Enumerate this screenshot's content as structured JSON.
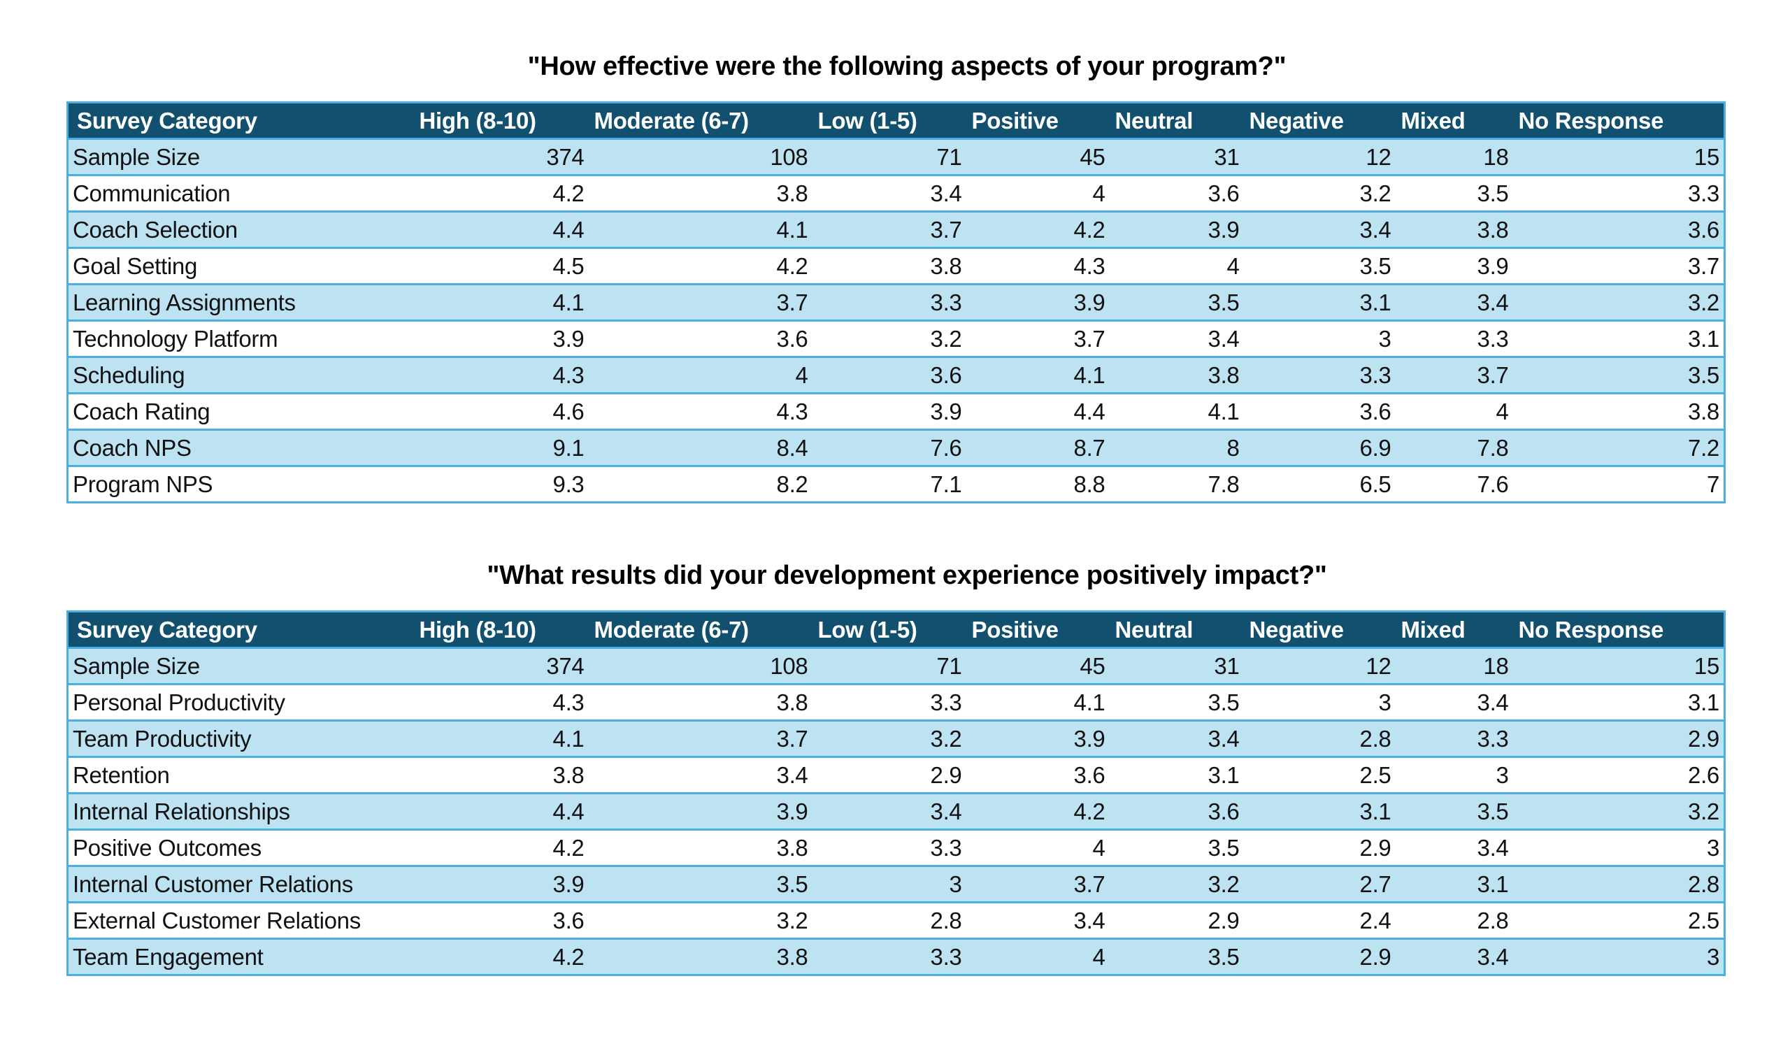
{
  "headers": [
    "Survey Category",
    "High (8-10)",
    "Moderate (6-7)",
    "Low (1-5)",
    "Positive",
    "Neutral",
    "Negative",
    "Mixed",
    "No Response"
  ],
  "tables": [
    {
      "title": "\"How effective were the following aspects of your program?\"",
      "rows": [
        [
          "Sample Size",
          "374",
          "108",
          "71",
          "45",
          "31",
          "12",
          "18",
          "15"
        ],
        [
          "Communication",
          "4.2",
          "3.8",
          "3.4",
          "4",
          "3.6",
          "3.2",
          "3.5",
          "3.3"
        ],
        [
          "Coach Selection",
          "4.4",
          "4.1",
          "3.7",
          "4.2",
          "3.9",
          "3.4",
          "3.8",
          "3.6"
        ],
        [
          "Goal Setting",
          "4.5",
          "4.2",
          "3.8",
          "4.3",
          "4",
          "3.5",
          "3.9",
          "3.7"
        ],
        [
          "Learning Assignments",
          "4.1",
          "3.7",
          "3.3",
          "3.9",
          "3.5",
          "3.1",
          "3.4",
          "3.2"
        ],
        [
          "Technology Platform",
          "3.9",
          "3.6",
          "3.2",
          "3.7",
          "3.4",
          "3",
          "3.3",
          "3.1"
        ],
        [
          "Scheduling",
          "4.3",
          "4",
          "3.6",
          "4.1",
          "3.8",
          "3.3",
          "3.7",
          "3.5"
        ],
        [
          "Coach Rating",
          "4.6",
          "4.3",
          "3.9",
          "4.4",
          "4.1",
          "3.6",
          "4",
          "3.8"
        ],
        [
          "Coach NPS",
          "9.1",
          "8.4",
          "7.6",
          "8.7",
          "8",
          "6.9",
          "7.8",
          "7.2"
        ],
        [
          "Program NPS",
          "9.3",
          "8.2",
          "7.1",
          "8.8",
          "7.8",
          "6.5",
          "7.6",
          "7"
        ]
      ]
    },
    {
      "title": "\"What results did your development experience positively impact?\"",
      "rows": [
        [
          "Sample Size",
          "374",
          "108",
          "71",
          "45",
          "31",
          "12",
          "18",
          "15"
        ],
        [
          "Personal Productivity",
          "4.3",
          "3.8",
          "3.3",
          "4.1",
          "3.5",
          "3",
          "3.4",
          "3.1"
        ],
        [
          "Team Productivity",
          "4.1",
          "3.7",
          "3.2",
          "3.9",
          "3.4",
          "2.8",
          "3.3",
          "2.9"
        ],
        [
          "Retention",
          "3.8",
          "3.4",
          "2.9",
          "3.6",
          "3.1",
          "2.5",
          "3",
          "2.6"
        ],
        [
          "Internal Relationships",
          "4.4",
          "3.9",
          "3.4",
          "4.2",
          "3.6",
          "3.1",
          "3.5",
          "3.2"
        ],
        [
          "Positive Outcomes",
          "4.2",
          "3.8",
          "3.3",
          "4",
          "3.5",
          "2.9",
          "3.4",
          "3"
        ],
        [
          "Internal Customer Relations",
          "3.9",
          "3.5",
          "3",
          "3.7",
          "3.2",
          "2.7",
          "3.1",
          "2.8"
        ],
        [
          "External Customer Relations",
          "3.6",
          "3.2",
          "2.8",
          "3.4",
          "2.9",
          "2.4",
          "2.8",
          "2.5"
        ],
        [
          "Team Engagement",
          "4.2",
          "3.8",
          "3.3",
          "4",
          "3.5",
          "2.9",
          "3.4",
          "3"
        ]
      ]
    }
  ],
  "colors": {
    "header_bg": "#12506f",
    "header_text": "#ffffff",
    "band_bg": "#bde3f3",
    "border": "#4aaee0"
  }
}
